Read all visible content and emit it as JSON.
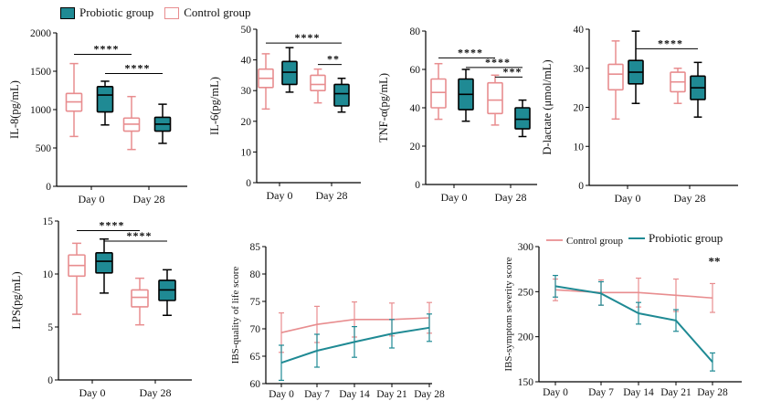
{
  "legend": {
    "probiotic": "Probiotic group",
    "control": "Control group"
  },
  "colors": {
    "probiotic": "#1f8a94",
    "control": "#e88d8f",
    "axis": "#000000"
  },
  "chart_data": [
    {
      "id": "il8",
      "type": "box",
      "ylabel": "IL-8(pg/mL)",
      "yticks": [
        0,
        500,
        1000,
        1500,
        2000
      ],
      "ylim": [
        0,
        2000
      ],
      "categories": [
        "Day 0",
        "Day 28"
      ],
      "groups": [
        {
          "name": "Control group",
          "boxes": [
            {
              "min": 650,
              "q1": 980,
              "median": 1100,
              "q3": 1210,
              "max": 1600
            },
            {
              "min": 480,
              "q1": 720,
              "median": 810,
              "q3": 890,
              "max": 1170
            }
          ]
        },
        {
          "name": "Probiotic group",
          "boxes": [
            {
              "min": 800,
              "q1": 970,
              "median": 1190,
              "q3": 1300,
              "max": 1370
            },
            {
              "min": 560,
              "q1": 720,
              "median": 810,
              "q3": 900,
              "max": 1070
            }
          ]
        }
      ],
      "sig": [
        {
          "label": "****",
          "from": [
            0,
            0
          ],
          "to": [
            1,
            0
          ],
          "level": 1720
        },
        {
          "label": "****",
          "from": [
            0,
            1
          ],
          "to": [
            1,
            1
          ],
          "level": 1470
        }
      ]
    },
    {
      "id": "il6",
      "type": "box",
      "ylabel": "IL-6(pg/mL)",
      "yticks": [
        0,
        10,
        20,
        30,
        40,
        50
      ],
      "ylim": [
        0,
        50
      ],
      "categories": [
        "Day 0",
        "Day 28"
      ],
      "groups": [
        {
          "name": "Control group",
          "boxes": [
            {
              "min": 24,
              "q1": 31,
              "median": 34,
              "q3": 37,
              "max": 42
            },
            {
              "min": 26,
              "q1": 30,
              "median": 32,
              "q3": 35,
              "max": 37
            }
          ]
        },
        {
          "name": "Probiotic group",
          "boxes": [
            {
              "min": 29.5,
              "q1": 32,
              "median": 36,
              "q3": 39.5,
              "max": 44
            },
            {
              "min": 23,
              "q1": 25,
              "median": 29,
              "q3": 32,
              "max": 34
            }
          ]
        }
      ],
      "sig": [
        {
          "label": "****",
          "from": [
            0,
            0
          ],
          "to": [
            1,
            1
          ],
          "level": 45.5
        },
        {
          "label": "**",
          "from": [
            1,
            0
          ],
          "to": [
            1,
            1
          ],
          "level": 38.5
        }
      ]
    },
    {
      "id": "tnf",
      "type": "box",
      "ylabel": "TNF-α(pg/mL)",
      "yticks": [
        0,
        20,
        40,
        60,
        80
      ],
      "ylim": [
        0,
        80
      ],
      "categories": [
        "Day 0",
        "Day 28"
      ],
      "groups": [
        {
          "name": "Control group",
          "boxes": [
            {
              "min": 34,
              "q1": 40,
              "median": 48,
              "q3": 55,
              "max": 63
            },
            {
              "min": 31,
              "q1": 37,
              "median": 44,
              "q3": 53,
              "max": 57
            }
          ]
        },
        {
          "name": "Probiotic group",
          "boxes": [
            {
              "min": 33,
              "q1": 39,
              "median": 47,
              "q3": 55,
              "max": 60
            },
            {
              "min": 25,
              "q1": 29,
              "median": 34,
              "q3": 40,
              "max": 44
            }
          ]
        }
      ],
      "sig": [
        {
          "label": "****",
          "from": [
            0,
            0
          ],
          "to": [
            1,
            0
          ],
          "level": 66
        },
        {
          "label": "****",
          "from": [
            0,
            1
          ],
          "to": [
            1,
            1
          ],
          "level": 61
        },
        {
          "label": "***",
          "from": [
            1,
            0
          ],
          "to": [
            1,
            1
          ],
          "level": 56
        }
      ]
    },
    {
      "id": "dlac",
      "type": "box",
      "ylabel": "D-lactate (μmol/mL)",
      "yticks": [
        0,
        10,
        20,
        30,
        40
      ],
      "ylim": [
        0,
        40
      ],
      "categories": [
        "Day 0",
        "Day 28"
      ],
      "groups": [
        {
          "name": "Control group",
          "boxes": [
            {
              "min": 17,
              "q1": 24.5,
              "median": 28.5,
              "q3": 31,
              "max": 37
            },
            {
              "min": 21,
              "q1": 24,
              "median": 26.5,
              "q3": 29,
              "max": 30
            }
          ]
        },
        {
          "name": "Probiotic group",
          "boxes": [
            {
              "min": 21,
              "q1": 26,
              "median": 29,
              "q3": 32,
              "max": 39.5
            },
            {
              "min": 17.5,
              "q1": 22,
              "median": 25,
              "q3": 28,
              "max": 31.5
            }
          ]
        }
      ],
      "sig": [
        {
          "label": "****",
          "from": [
            0,
            1
          ],
          "to": [
            1,
            1
          ],
          "level": 35
        }
      ]
    },
    {
      "id": "lps",
      "type": "box",
      "ylabel": "LPS(pg/mL)",
      "yticks": [
        0,
        5,
        10,
        15
      ],
      "ylim": [
        0,
        15
      ],
      "categories": [
        "Day 0",
        "Day 28"
      ],
      "groups": [
        {
          "name": "Control group",
          "boxes": [
            {
              "min": 6.2,
              "q1": 9.8,
              "median": 10.8,
              "q3": 11.8,
              "max": 12.9
            },
            {
              "min": 5.2,
              "q1": 6.9,
              "median": 7.8,
              "q3": 8.5,
              "max": 9.6
            }
          ]
        },
        {
          "name": "Probiotic group",
          "boxes": [
            {
              "min": 8.2,
              "q1": 10.1,
              "median": 11.2,
              "q3": 12,
              "max": 13.3
            },
            {
              "min": 6.1,
              "q1": 7.5,
              "median": 8.5,
              "q3": 9.4,
              "max": 10.4
            }
          ]
        }
      ],
      "sig": [
        {
          "label": "****",
          "from": [
            0,
            0
          ],
          "to": [
            1,
            0
          ],
          "level": 14.1
        },
        {
          "label": "****",
          "from": [
            0,
            1
          ],
          "to": [
            1,
            1
          ],
          "level": 13.1
        }
      ]
    },
    {
      "id": "qol",
      "type": "line",
      "ylabel": "IBS-quality of life score",
      "yticks": [
        60,
        65,
        70,
        75,
        80,
        85
      ],
      "ylim": [
        60,
        85
      ],
      "x": [
        "Day 0",
        "Day 7",
        "Day 14",
        "Day 21",
        "Day 28"
      ],
      "series": [
        {
          "name": "Control group",
          "values": [
            69.3,
            70.8,
            71.7,
            71.7,
            72.0
          ],
          "err": [
            3.6,
            3.3,
            3.2,
            3.0,
            2.8
          ]
        },
        {
          "name": "Probiotic group",
          "values": [
            63.8,
            66.0,
            67.6,
            69.1,
            70.2
          ],
          "err": [
            3.2,
            3.0,
            2.8,
            2.6,
            2.5
          ]
        }
      ]
    },
    {
      "id": "sss",
      "type": "line",
      "ylabel": "IBS-symptom severity score",
      "yticks": [
        150,
        200,
        250,
        300
      ],
      "ylim": [
        150,
        300
      ],
      "x": [
        "Day 0",
        "Day 7",
        "Day 14",
        "Day 21",
        "Day 28"
      ],
      "legend": [
        "Control group",
        "Probiotic group"
      ],
      "annotation": "**",
      "series": [
        {
          "name": "Control group",
          "values": [
            252,
            249,
            249,
            246,
            243
          ],
          "err": [
            12,
            14,
            16,
            18,
            16
          ]
        },
        {
          "name": "Probiotic group",
          "values": [
            256,
            248,
            226,
            218,
            172
          ],
          "err": [
            12,
            13,
            12,
            12,
            10
          ]
        }
      ]
    }
  ]
}
